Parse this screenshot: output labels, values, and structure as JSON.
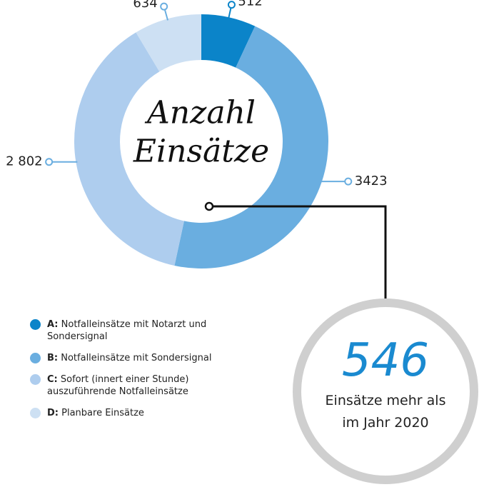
{
  "chart_data": {
    "type": "pie",
    "donut": true,
    "title": [
      "Anzahl",
      "Einsätze"
    ],
    "legend_keys": [
      "A:",
      "B:",
      "C:",
      "D:"
    ],
    "categories": [
      "Notfalleinsätze mit Notarzt und Sondersignal",
      "Notfalleinsätze mit Sondersignal",
      "Sofort (innert einer Stunde) auszuführende Notfalleinsätze",
      "Planbare Einsätze"
    ],
    "values": [
      512,
      3423,
      2802,
      634
    ],
    "value_labels": [
      "512",
      "3423",
      "2 802",
      "634"
    ],
    "colors": [
      "#0b84c9",
      "#6aaee0",
      "#aecdee",
      "#cde0f3"
    ],
    "annotation": {
      "number": 546,
      "text": "Einsätze mehr als im Jahr 2020"
    }
  }
}
